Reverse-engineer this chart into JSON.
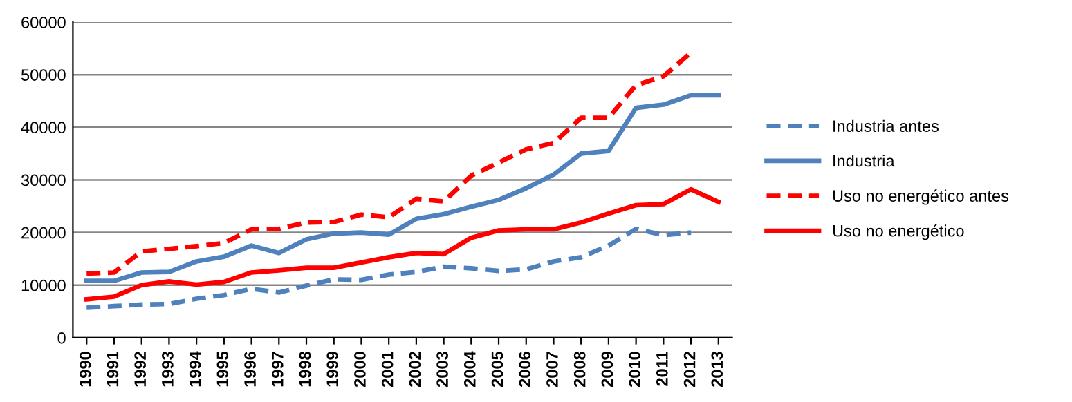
{
  "chart_data": {
    "type": "line",
    "categories": [
      "1990",
      "1991",
      "1992",
      "1993",
      "1994",
      "1995",
      "1996",
      "1997",
      "1998",
      "1999",
      "2000",
      "2001",
      "2002",
      "2003",
      "2004",
      "2005",
      "2006",
      "2007",
      "2008",
      "2009",
      "2010",
      "2011",
      "2012",
      "2013"
    ],
    "series": [
      {
        "name": "Industria antes",
        "color": "#4f81bd",
        "line_style": "dashed",
        "values": [
          5700,
          6000,
          6300,
          6400,
          7400,
          8100,
          9300,
          8600,
          9900,
          11100,
          11000,
          12000,
          12500,
          13500,
          13200,
          12700,
          13000,
          14500,
          15300,
          17500,
          20700,
          19500,
          20000,
          null
        ]
      },
      {
        "name": "Industria",
        "color": "#4f81bd",
        "line_style": "solid",
        "values": [
          10800,
          10800,
          12400,
          12500,
          14500,
          15400,
          17500,
          16100,
          18700,
          19800,
          20000,
          19600,
          22600,
          23500,
          24900,
          26200,
          28400,
          31000,
          35000,
          35500,
          43700,
          44300,
          46100,
          46100
        ]
      },
      {
        "name": "Uso no energético antes",
        "color": "#ff0000",
        "line_style": "dashed",
        "values": [
          12200,
          12400,
          16400,
          16900,
          17400,
          18000,
          20600,
          20700,
          21900,
          22000,
          23400,
          22900,
          26400,
          25900,
          30800,
          33300,
          35800,
          37000,
          41800,
          41800,
          48000,
          49700,
          54200,
          null
        ]
      },
      {
        "name": "Uso no energético",
        "color": "#ff0000",
        "line_style": "solid",
        "values": [
          7300,
          7800,
          10000,
          10700,
          10100,
          10600,
          12400,
          12800,
          13300,
          13300,
          14300,
          15300,
          16100,
          15900,
          19000,
          20400,
          20600,
          20600,
          21900,
          23600,
          25200,
          25400,
          28200,
          25800
        ]
      }
    ],
    "ylim": [
      0,
      60000
    ],
    "yticks": [
      0,
      10000,
      20000,
      30000,
      40000,
      50000,
      60000
    ],
    "grid": "y",
    "legend": "right",
    "marker": "none"
  }
}
